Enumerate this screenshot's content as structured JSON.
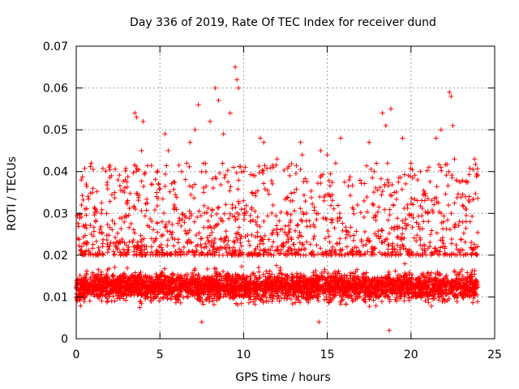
{
  "chart_data": {
    "type": "scatter",
    "title": "Day 336 of 2019, Rate Of TEC Index for receiver dund",
    "xlabel": "GPS time / hours",
    "ylabel": "ROTI / TECUs",
    "xlim": [
      0,
      25
    ],
    "ylim": [
      0,
      0.07
    ],
    "x_ticks": [
      0,
      5,
      10,
      15,
      20,
      25
    ],
    "x_tick_labels": [
      "0",
      "5",
      "10",
      "15",
      "20",
      "25"
    ],
    "y_ticks": [
      0,
      0.01,
      0.02,
      0.03,
      0.04,
      0.05,
      0.06,
      0.07
    ],
    "y_tick_labels": [
      "0",
      "0.01",
      "0.02",
      "0.03",
      "0.04",
      "0.05",
      "0.06",
      "0.07"
    ],
    "grid": true,
    "marker": "+",
    "color": "#ff0000",
    "series": [
      {
        "name": "ROTI",
        "data_range_hours": [
          0,
          24
        ],
        "baseline_band": [
          0.005,
          0.02
        ],
        "points": [
          [
            0.3,
            0.038
          ],
          [
            0.6,
            0.037
          ],
          [
            0.9,
            0.042
          ],
          [
            1.0,
            0.036
          ],
          [
            2.1,
            0.039
          ],
          [
            2.5,
            0.038
          ],
          [
            3.5,
            0.054
          ],
          [
            3.6,
            0.053
          ],
          [
            3.9,
            0.045
          ],
          [
            4.0,
            0.052
          ],
          [
            4.5,
            0.037
          ],
          [
            5.3,
            0.049
          ],
          [
            5.5,
            0.045
          ],
          [
            6.3,
            0.04
          ],
          [
            6.6,
            0.042
          ],
          [
            6.8,
            0.047
          ],
          [
            7.1,
            0.05
          ],
          [
            7.3,
            0.056
          ],
          [
            8.0,
            0.052
          ],
          [
            8.3,
            0.06
          ],
          [
            8.5,
            0.057
          ],
          [
            8.8,
            0.049
          ],
          [
            9.2,
            0.054
          ],
          [
            9.5,
            0.065
          ],
          [
            9.6,
            0.062
          ],
          [
            9.7,
            0.06
          ],
          [
            9.4,
            0.041
          ],
          [
            11.0,
            0.048
          ],
          [
            11.2,
            0.047
          ],
          [
            12.0,
            0.043
          ],
          [
            13.4,
            0.047
          ],
          [
            13.5,
            0.044
          ],
          [
            14.6,
            0.045
          ],
          [
            15.0,
            0.044
          ],
          [
            15.5,
            0.042
          ],
          [
            15.8,
            0.048
          ],
          [
            16.3,
            0.038
          ],
          [
            17.5,
            0.047
          ],
          [
            18.3,
            0.054
          ],
          [
            18.5,
            0.051
          ],
          [
            18.8,
            0.055
          ],
          [
            18.6,
            0.042
          ],
          [
            19.5,
            0.048
          ],
          [
            20.0,
            0.042
          ],
          [
            20.4,
            0.038
          ],
          [
            21.5,
            0.048
          ],
          [
            21.8,
            0.05
          ],
          [
            22.3,
            0.059
          ],
          [
            22.4,
            0.058
          ],
          [
            22.5,
            0.051
          ],
          [
            22.6,
            0.043
          ],
          [
            23.8,
            0.043
          ],
          [
            0.1,
            0.024
          ],
          [
            1.5,
            0.03
          ],
          [
            4.8,
            0.034
          ],
          [
            10.5,
            0.035
          ],
          [
            12.8,
            0.033
          ],
          [
            16.8,
            0.032
          ],
          [
            19.0,
            0.035
          ],
          [
            21.0,
            0.03
          ],
          [
            23.3,
            0.031
          ],
          [
            18.7,
            0.002
          ],
          [
            14.5,
            0.004
          ],
          [
            7.5,
            0.004
          ]
        ]
      }
    ]
  }
}
